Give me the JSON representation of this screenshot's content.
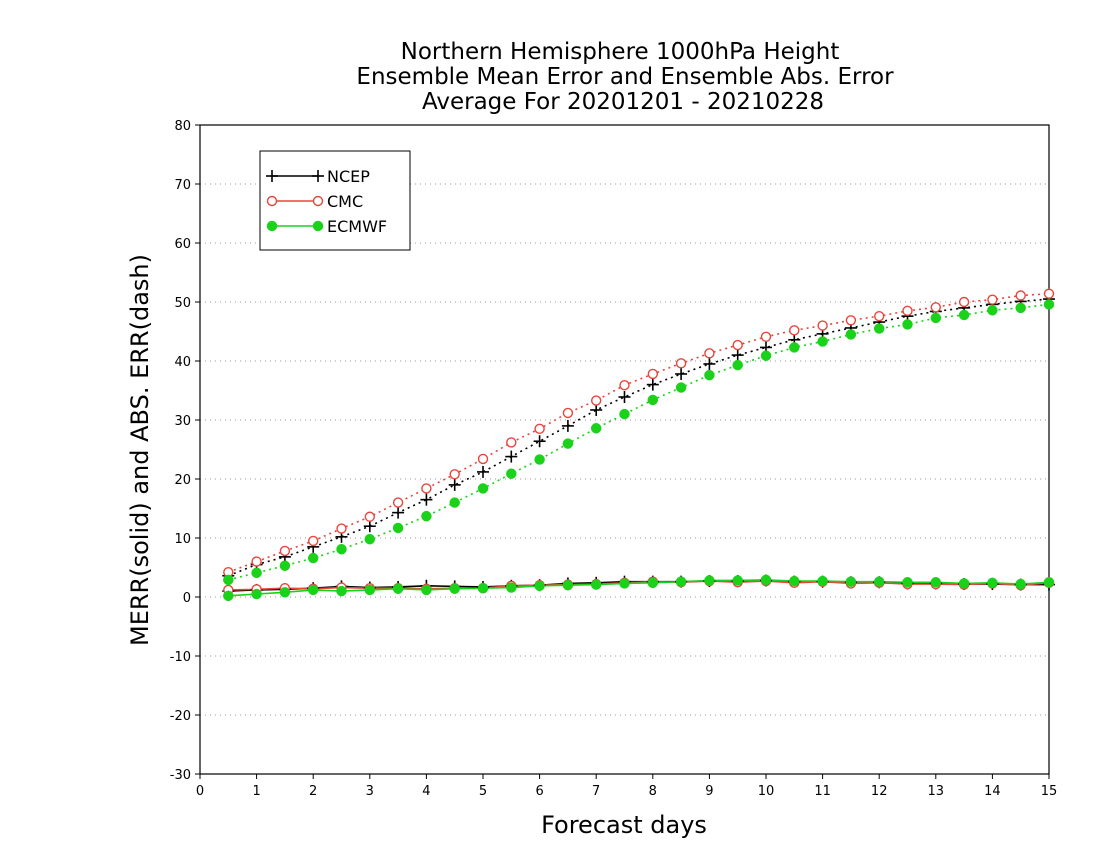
{
  "chart_data": {
    "type": "line",
    "title": [
      "Northern Hemisphere 1000hPa Height",
      "Ensemble Mean Error and Ensemble Abs. Error",
      "Average For 20201201 - 20210228"
    ],
    "xlabel": "Forecast days",
    "ylabel": "MERR(solid) and ABS. ERR(dash)",
    "xlim": [
      0,
      15
    ],
    "ylim": [
      -30,
      80
    ],
    "x_ticks": [
      0,
      1,
      2,
      3,
      4,
      5,
      6,
      7,
      8,
      9,
      10,
      11,
      12,
      13,
      14,
      15
    ],
    "y_ticks": [
      -30,
      -20,
      -10,
      0,
      10,
      20,
      30,
      40,
      50,
      60,
      70,
      80
    ],
    "grid": "horizontal dotted",
    "legend_position": "top-left",
    "x": [
      0.5,
      1,
      1.5,
      2,
      2.5,
      3,
      3.5,
      4,
      4.5,
      5,
      5.5,
      6,
      6.5,
      7,
      7.5,
      8,
      8.5,
      9,
      9.5,
      10,
      10.5,
      11,
      11.5,
      12,
      12.5,
      13,
      13.5,
      14,
      14.5,
      15
    ],
    "series": [
      {
        "name": "NCEP",
        "color": "#000000",
        "marker": "plus",
        "merr": [
          1.0,
          1.2,
          1.3,
          1.5,
          1.8,
          1.6,
          1.7,
          1.9,
          1.8,
          1.7,
          1.9,
          2.0,
          2.3,
          2.4,
          2.6,
          2.6,
          2.6,
          2.7,
          2.7,
          2.8,
          2.6,
          2.6,
          2.5,
          2.5,
          2.3,
          2.3,
          2.2,
          2.2,
          2.1,
          2.1
        ],
        "abs_err": [
          3.6,
          5.5,
          6.8,
          8.5,
          10.2,
          12.0,
          14.3,
          16.5,
          19.0,
          21.2,
          23.8,
          26.4,
          29.0,
          31.7,
          33.9,
          36.0,
          37.8,
          39.5,
          41.0,
          42.3,
          43.6,
          44.6,
          45.6,
          46.6,
          47.6,
          48.4,
          49.0,
          49.6,
          50.1,
          50.5
        ]
      },
      {
        "name": "CMC",
        "color": "#e8453c",
        "marker": "open-circle",
        "merr": [
          1.2,
          1.3,
          1.5,
          1.4,
          1.6,
          1.5,
          1.5,
          1.4,
          1.5,
          1.5,
          1.9,
          2.0,
          2.1,
          2.2,
          2.4,
          2.6,
          2.5,
          2.7,
          2.5,
          2.7,
          2.4,
          2.6,
          2.3,
          2.4,
          2.2,
          2.2,
          2.1,
          2.3,
          2.0,
          2.4
        ],
        "abs_err": [
          4.2,
          6.0,
          7.8,
          9.5,
          11.6,
          13.6,
          16.0,
          18.4,
          20.8,
          23.4,
          26.2,
          28.5,
          31.2,
          33.3,
          35.9,
          37.8,
          39.6,
          41.3,
          42.7,
          44.1,
          45.2,
          46.0,
          46.9,
          47.6,
          48.5,
          49.1,
          50.0,
          50.4,
          51.1,
          51.4
        ]
      },
      {
        "name": "ECMWF",
        "color": "#1ad21a",
        "marker": "filled-circle",
        "merr": [
          0.2,
          0.5,
          0.8,
          1.2,
          1.0,
          1.2,
          1.4,
          1.2,
          1.4,
          1.5,
          1.6,
          1.9,
          2.0,
          2.1,
          2.3,
          2.4,
          2.6,
          2.8,
          2.8,
          2.9,
          2.7,
          2.7,
          2.6,
          2.6,
          2.5,
          2.5,
          2.3,
          2.4,
          2.2,
          2.5
        ],
        "abs_err": [
          2.9,
          4.1,
          5.3,
          6.6,
          8.1,
          9.8,
          11.7,
          13.7,
          16.0,
          18.4,
          20.9,
          23.3,
          26.0,
          28.6,
          31.0,
          33.4,
          35.5,
          37.6,
          39.3,
          40.9,
          42.3,
          43.3,
          44.5,
          45.5,
          46.2,
          47.3,
          47.8,
          48.6,
          49.0,
          49.6
        ]
      }
    ]
  }
}
